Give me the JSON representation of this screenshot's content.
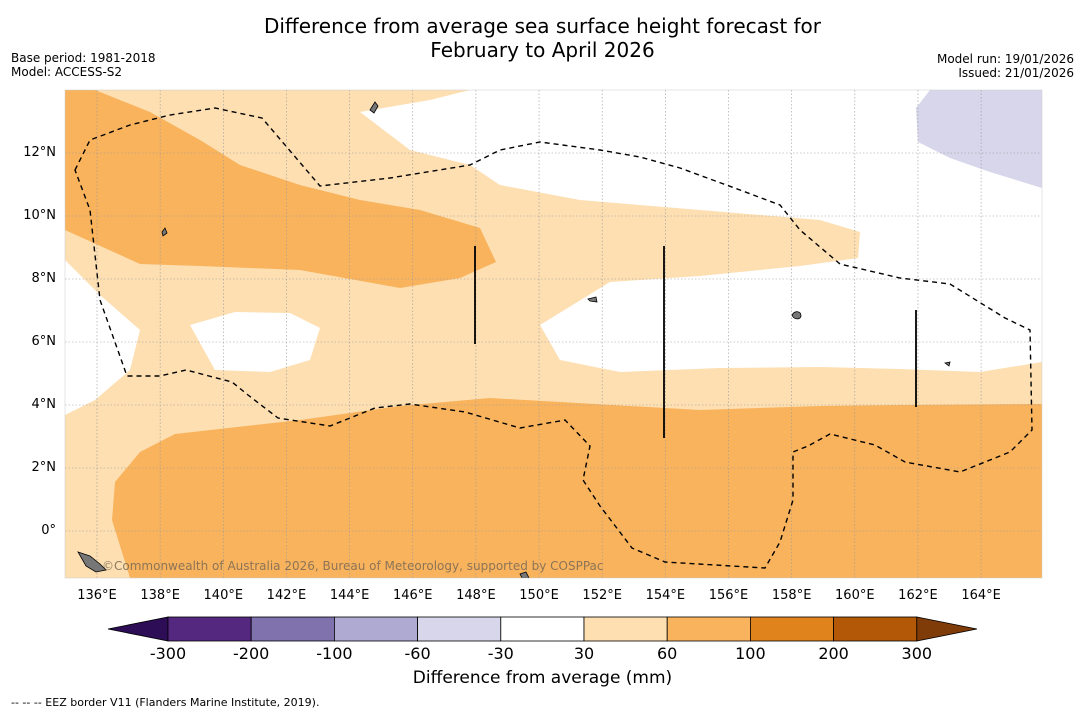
{
  "title_line1": "Difference from average sea surface height forecast for",
  "title_line2": "February to April 2026",
  "meta_left": {
    "base_period": "Base period: 1981-2018",
    "model": "Model: ACCESS-S2"
  },
  "meta_right": {
    "model_run": "Model run: 19/01/2026",
    "issued": "Issued: 21/01/2026"
  },
  "credit": "©Commonwealth of Australia 2026, Bureau of Meteorology, supported by COSPPac",
  "lon_labels": [
    "136°E",
    "138°E",
    "140°E",
    "142°E",
    "144°E",
    "146°E",
    "148°E",
    "150°E",
    "152°E",
    "154°E",
    "156°E",
    "158°E",
    "160°E",
    "162°E",
    "164°E"
  ],
  "lat_labels": [
    "12°N",
    "10°N",
    "8°N",
    "6°N",
    "4°N",
    "2°N",
    "0°"
  ],
  "colorbar": {
    "title": "Difference from average (mm)",
    "ticks": [
      "-300",
      "-200",
      "-100",
      "-60",
      "-30",
      "30",
      "60",
      "100",
      "200",
      "300"
    ],
    "colors": [
      "#2d0d55",
      "#54287f",
      "#7f72ad",
      "#aeaad2",
      "#d7d6ea",
      "#ffffff",
      "#fddfb2",
      "#f9b35d",
      "#e0831c",
      "#b35806",
      "#7f3b08"
    ]
  },
  "footnote": "--  --  -- EEZ border V11 (Flanders Marine Institute, 2019)."
}
